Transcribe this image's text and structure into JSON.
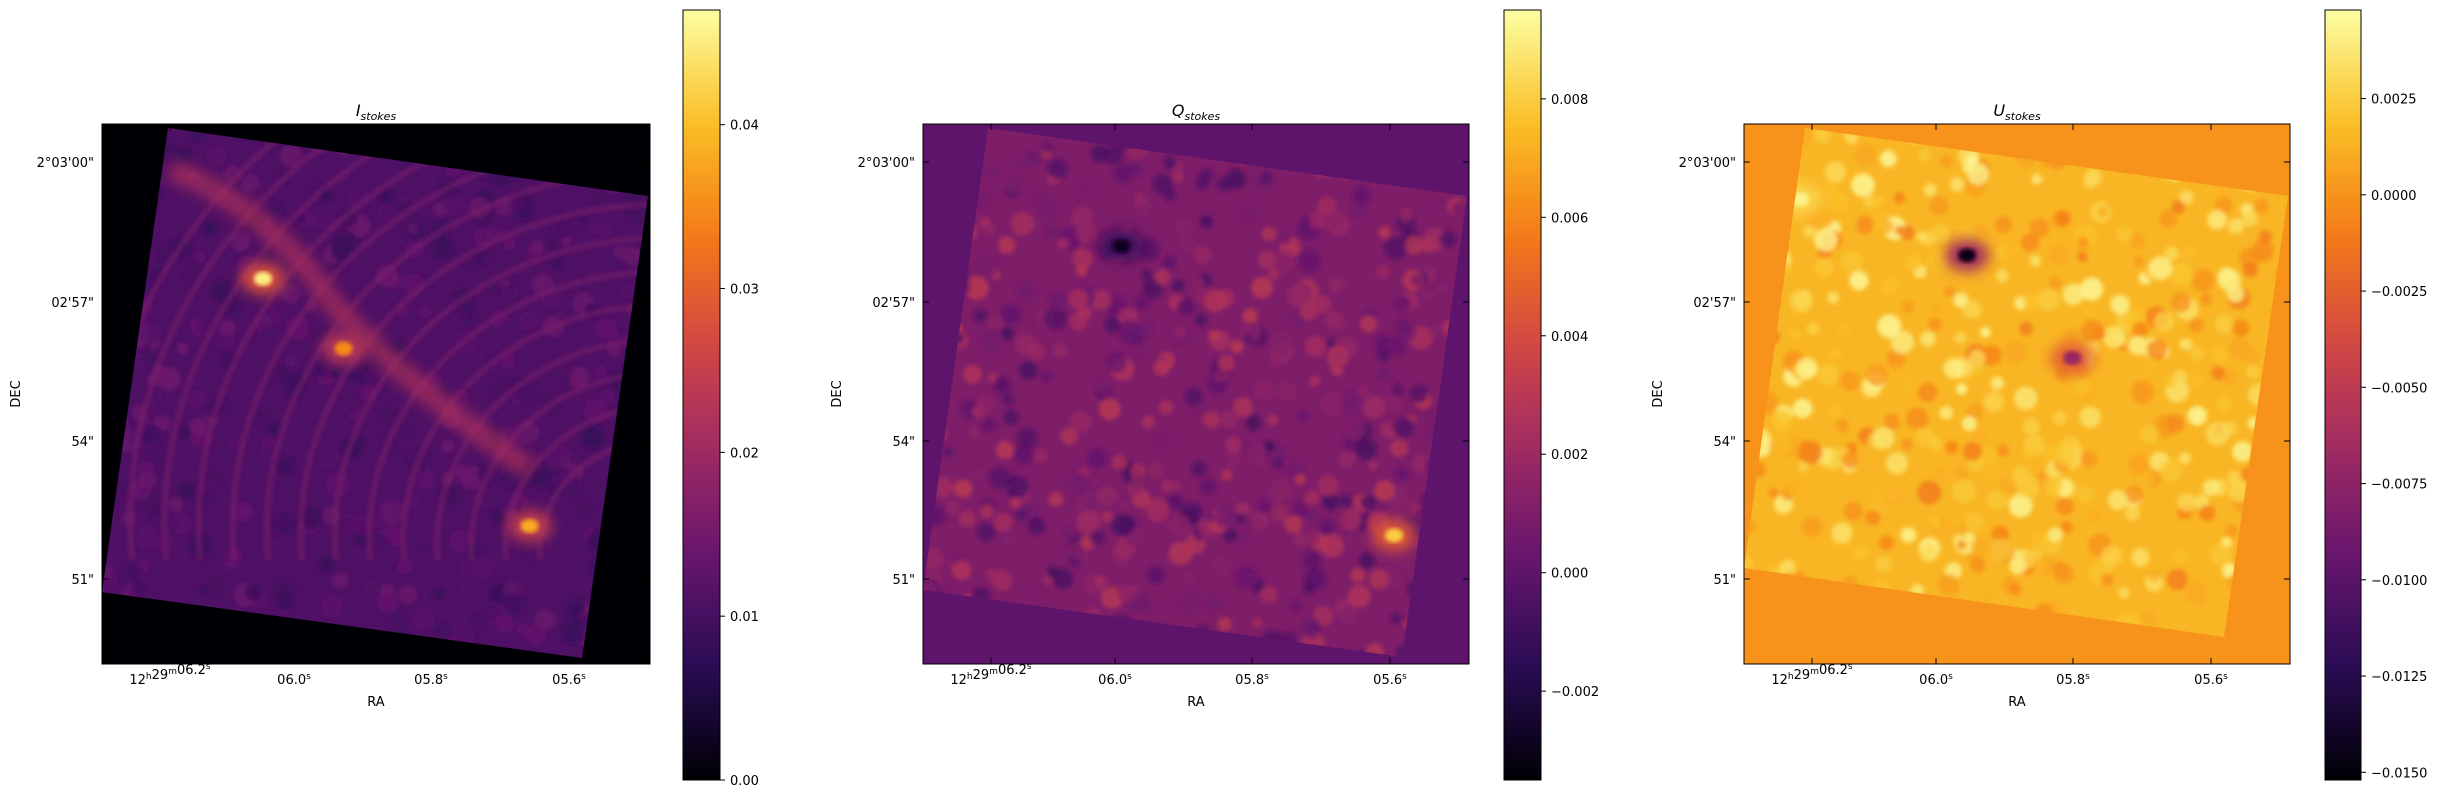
{
  "chart_data": [
    {
      "type": "heatmap",
      "title_main": "I",
      "title_sub": "stokes",
      "xlabel": "RA",
      "ylabel": "DEC",
      "x_ticks": [
        {
          "h": "12",
          "hsup": "h",
          "m": "29",
          "msup": "m",
          "s": "06.2",
          "ssup": "s"
        },
        {
          "s": "06.0",
          "ssup": "s"
        },
        {
          "s": "05.8",
          "ssup": "s"
        },
        {
          "s": "05.6",
          "ssup": "s"
        }
      ],
      "y_ticks": [
        "2°03'00\"",
        "02'57\"",
        "54\"",
        "51\""
      ],
      "colorbar": {
        "colormap": "inferno",
        "min": 0.0,
        "max": 0.047,
        "ticks": [
          "0.00",
          "0.01",
          "0.02",
          "0.03",
          "0.04"
        ],
        "tick_values": [
          0.0,
          0.01,
          0.02,
          0.03,
          0.04
        ]
      },
      "background_value": 0.0,
      "field_value": 0.011,
      "features": [
        {
          "kind": "blob",
          "ra": 6.05,
          "dec": 57.5,
          "value": 0.045
        },
        {
          "kind": "blob",
          "ra": 5.92,
          "dec": 56.0,
          "value": 0.035
        },
        {
          "kind": "blob",
          "ra": 5.62,
          "dec": 52.2,
          "value": 0.038
        },
        {
          "kind": "ridge",
          "value": 0.022
        },
        {
          "kind": "ripples",
          "value": 0.016
        }
      ]
    },
    {
      "type": "heatmap",
      "title_main": "Q",
      "title_sub": "stokes",
      "xlabel": "RA",
      "ylabel": "DEC",
      "x_ticks": [
        {
          "h": "12",
          "hsup": "h",
          "m": "29",
          "msup": "m",
          "s": "06.2",
          "ssup": "s"
        },
        {
          "s": "06.0",
          "ssup": "s"
        },
        {
          "s": "05.8",
          "ssup": "s"
        },
        {
          "s": "05.6",
          "ssup": "s"
        }
      ],
      "y_ticks": [
        "2°03'00\"",
        "02'57\"",
        "54\"",
        "51\""
      ],
      "colorbar": {
        "colormap": "inferno",
        "min": -0.0035,
        "max": 0.0095,
        "ticks": [
          "−0.002",
          "0.000",
          "0.002",
          "0.004",
          "0.006",
          "0.008"
        ],
        "tick_values": [
          -0.002,
          0.0,
          0.002,
          0.004,
          0.006,
          0.008
        ]
      },
      "background_value": 0.0,
      "field_value": 0.001,
      "features": [
        {
          "kind": "blob",
          "ra": 5.55,
          "dec": 52.0,
          "value": 0.008
        },
        {
          "kind": "blob",
          "ra": 5.99,
          "dec": 58.2,
          "value": -0.003
        }
      ]
    },
    {
      "type": "heatmap",
      "title_main": "U",
      "title_sub": "stokes",
      "xlabel": "RA",
      "ylabel": "DEC",
      "x_ticks": [
        {
          "h": "12",
          "hsup": "h",
          "m": "29",
          "msup": "m",
          "s": "06.2",
          "ssup": "s"
        },
        {
          "s": "06.0",
          "ssup": "s"
        },
        {
          "s": "05.8",
          "ssup": "s"
        },
        {
          "s": "05.6",
          "ssup": "s"
        }
      ],
      "y_ticks": [
        "2°03'00\"",
        "02'57\"",
        "54\"",
        "51\""
      ],
      "colorbar": {
        "colormap": "inferno",
        "min": -0.0152,
        "max": 0.0048,
        "ticks": [
          "−0.0150",
          "−0.0125",
          "−0.0100",
          "−0.0075",
          "−0.0050",
          "−0.0025",
          "0.0000",
          "0.0025"
        ],
        "tick_values": [
          -0.015,
          -0.0125,
          -0.01,
          -0.0075,
          -0.005,
          -0.0025,
          0.0,
          0.0025
        ]
      },
      "background_value": 0.0,
      "field_value": 0.0015,
      "features": [
        {
          "kind": "blob",
          "ra": 5.95,
          "dec": 58.0,
          "value": -0.0145
        },
        {
          "kind": "blob",
          "ra": 6.22,
          "dec": 59.2,
          "value": 0.0042
        },
        {
          "kind": "blob",
          "ra": 5.78,
          "dec": 55.8,
          "value": -0.007
        }
      ]
    }
  ]
}
